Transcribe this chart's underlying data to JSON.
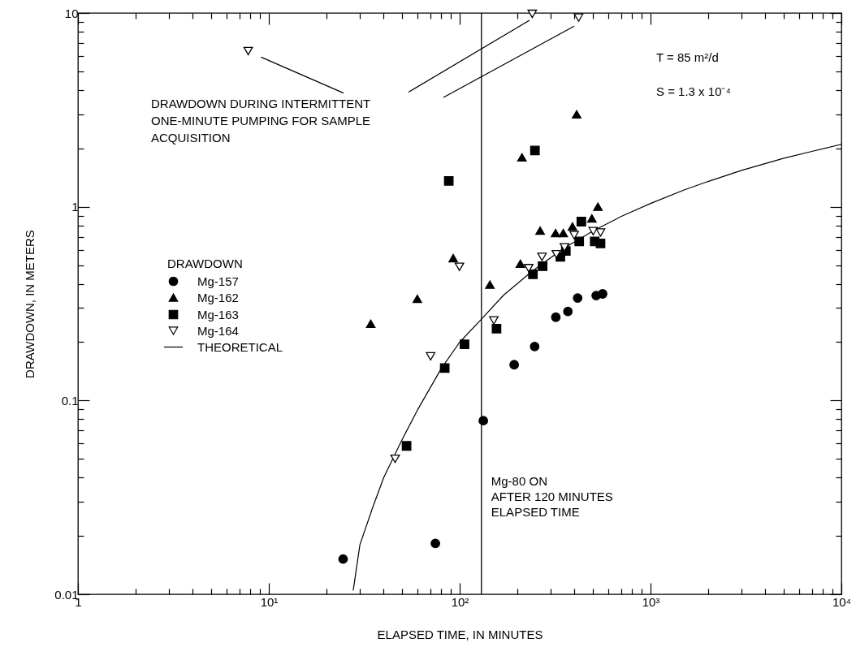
{
  "chart_data": {
    "type": "scatter",
    "xlabel": "ELAPSED TIME,  IN MINUTES",
    "ylabel": "DRAWDOWN,  IN METERS",
    "log": "xy",
    "grid": false,
    "legend": "left",
    "legend_title": "DRAWDOWN",
    "xlim": [
      1,
      10000
    ],
    "ylim": [
      0.01,
      10
    ],
    "xticks": [
      1,
      {
        "value": 2,
        "label": null
      },
      {
        "value": 3,
        "label": null
      },
      {
        "value": 4,
        "label": null
      },
      {
        "value": 5,
        "label": null
      },
      {
        "value": 6,
        "label": null
      },
      {
        "value": 7,
        "label": null
      },
      {
        "value": 8,
        "label": null
      },
      {
        "value": 9,
        "label": null
      },
      {
        "value": 10,
        "label": "10¹"
      },
      {
        "value": 20,
        "label": null
      },
      {
        "value": 30,
        "label": null
      },
      {
        "value": 40,
        "label": null
      },
      {
        "value": 50,
        "label": null
      },
      {
        "value": 60,
        "label": null
      },
      {
        "value": 70,
        "label": null
      },
      {
        "value": 80,
        "label": null
      },
      {
        "value": 90,
        "label": null
      },
      {
        "value": 100,
        "label": "10²"
      },
      {
        "value": 200,
        "label": null
      },
      {
        "value": 300,
        "label": null
      },
      {
        "value": 400,
        "label": null
      },
      {
        "value": 500,
        "label": null
      },
      {
        "value": 600,
        "label": null
      },
      {
        "value": 700,
        "label": null
      },
      {
        "value": 800,
        "label": null
      },
      {
        "value": 900,
        "label": null
      },
      {
        "value": 1000,
        "label": "10³"
      },
      {
        "value": 2000,
        "label": null
      },
      {
        "value": 3000,
        "label": null
      },
      {
        "value": 4000,
        "label": null
      },
      {
        "value": 5000,
        "label": null
      },
      {
        "value": 6000,
        "label": null
      },
      {
        "value": 7000,
        "label": null
      },
      {
        "value": 8000,
        "label": null
      },
      {
        "value": 9000,
        "label": null
      },
      {
        "value": 10000,
        "label": "10⁴"
      }
    ],
    "yticks": [
      0.01,
      {
        "value": 0.02,
        "label": null
      },
      {
        "value": 0.03,
        "label": null
      },
      {
        "value": 0.04,
        "label": null
      },
      {
        "value": 0.05,
        "label": null
      },
      {
        "value": 0.06,
        "label": null
      },
      {
        "value": 0.07,
        "label": null
      },
      {
        "value": 0.08,
        "label": null
      },
      {
        "value": 0.09,
        "label": null
      },
      0.1,
      {
        "value": 0.2,
        "label": null
      },
      {
        "value": 0.3,
        "label": null
      },
      {
        "value": 0.4,
        "label": null
      },
      {
        "value": 0.5,
        "label": null
      },
      {
        "value": 0.6,
        "label": null
      },
      {
        "value": 0.7,
        "label": null
      },
      {
        "value": 0.8,
        "label": null
      },
      {
        "value": 0.9,
        "label": null
      },
      1,
      {
        "value": 2,
        "label": null
      },
      {
        "value": 3,
        "label": null
      },
      {
        "value": 4,
        "label": null
      },
      {
        "value": 5,
        "label": null
      },
      {
        "value": 6,
        "label": null
      },
      {
        "value": 7,
        "label": null
      },
      {
        "value": 8,
        "label": null
      },
      {
        "value": 9,
        "label": null
      },
      10
    ],
    "series": [
      {
        "name": "Mg-157",
        "marker": "circle",
        "color": "#000000",
        "x": [
          24.5,
          74.6,
          133,
          193,
          247,
          319,
          369,
          415,
          519,
          561
        ],
        "values": [
          0.0152,
          0.0183,
          0.0787,
          0.153,
          0.19,
          0.269,
          0.288,
          0.338,
          0.348,
          0.355
        ]
      },
      {
        "name": "Mg-162",
        "marker": "triangle",
        "color": "#000000",
        "x": [
          34.2,
          60,
          92.5,
          144,
          208,
          212,
          264,
          318,
          349,
          390,
          410,
          493,
          530
        ],
        "values": [
          0.249,
          0.335,
          0.543,
          0.396,
          0.508,
          1.8,
          0.753,
          0.731,
          0.731,
          0.791,
          3.0,
          0.871,
          1.0
        ]
      },
      {
        "name": "Mg-163",
        "marker": "square",
        "color": "#000000",
        "x": [
          52.7,
          83.5,
          87.7,
          106,
          156,
          242,
          248,
          272,
          337,
          360,
          423,
          434,
          510,
          547
        ],
        "values": [
          0.0583,
          0.147,
          1.36,
          0.195,
          0.235,
          0.448,
          1.95,
          0.493,
          0.551,
          0.591,
          0.662,
          0.838,
          0.662,
          0.647
        ]
      },
      {
        "name": "Mg-164",
        "marker": "triangle-down",
        "color": "#ffffff",
        "x": [
          7.8,
          45.9,
          70.4,
          99.7,
          151,
          230,
          240,
          270,
          321,
          354,
          398,
          420,
          501,
          547
        ],
        "values": [
          6.36,
          0.05,
          0.169,
          0.49,
          0.259,
          0.482,
          9.9,
          0.551,
          0.569,
          0.617,
          0.713,
          9.46,
          0.748,
          0.736
        ]
      },
      {
        "name": "THEORETICAL",
        "type": "line",
        "marker": "none",
        "line_style": "solid",
        "color": "#000000",
        "x": [
          27.7,
          30,
          35,
          40,
          50,
          60,
          80,
          100,
          130,
          170,
          240,
          350,
          500,
          700,
          1000,
          1500,
          2000,
          3000,
          5000,
          7000,
          10000
        ],
        "values": [
          0.0105,
          0.018,
          0.028,
          0.04,
          0.063,
          0.089,
          0.146,
          0.2,
          0.263,
          0.35,
          0.465,
          0.61,
          0.75,
          0.89,
          1.04,
          1.22,
          1.35,
          1.54,
          1.78,
          1.93,
          2.1
        ]
      }
    ],
    "ref_lines": [
      {
        "axis": "x",
        "value": 130,
        "label": "Mg-80 ON\nAFTER 120 MINUTES\nELAPSED TIME",
        "color": "#000000",
        "line_style": "solid"
      }
    ],
    "annotations": [
      "T = 85 m²/d",
      "S = 1.3 x 10⁻⁴",
      "DRAWDOWN DURING INTERMITTENT\nONE-MINUTE PUMPING FOR SAMPLE\nACQUISITION"
    ]
  }
}
